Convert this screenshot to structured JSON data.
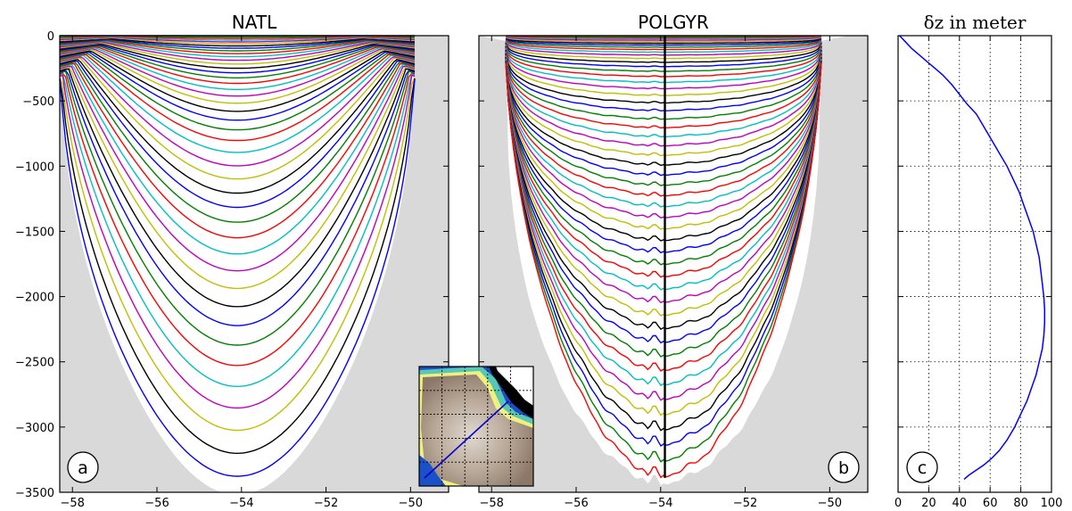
{
  "chart_data": [
    {
      "type": "line",
      "panel": "a",
      "title": "NATL",
      "xlim": [
        -58.3,
        -49.1
      ],
      "ylim": [
        -3500,
        0
      ],
      "xticks": [
        -58,
        -56,
        -54,
        -52,
        -50
      ],
      "yticks": [
        0,
        -500,
        -1000,
        -1500,
        -2000,
        -2500,
        -3000,
        -3500
      ],
      "xtick_labels": [
        "−58",
        "−56",
        "−54",
        "−52",
        "−50"
      ],
      "ytick_labels": [
        "0",
        "−500",
        "−1000",
        "−1500",
        "−2000",
        "−2500",
        "−3000",
        "−3500"
      ],
      "series_description": "Vertical model-level depths (isolines) across the section; central depth of each level",
      "level_center_depths": [
        0,
        -10,
        -21,
        -33,
        -46,
        -60,
        -76,
        -93,
        -112,
        -133,
        -156,
        -182,
        -210,
        -241,
        -275,
        -312,
        -353,
        -398,
        -447,
        -500,
        -560,
        -625,
        -697,
        -776,
        -864,
        -963,
        -1060,
        -1165,
        -1270,
        -1380,
        -1495,
        -1615,
        -1740,
        -1870,
        -2005,
        -2145,
        -2290,
        -2440,
        -2595,
        -2755,
        -2920,
        -3090,
        -3260
      ],
      "bottom_depth": -3340,
      "panel_label": "a",
      "grid": false
    },
    {
      "type": "line",
      "panel": "b",
      "title": "POLGYR",
      "xlim": [
        -58.3,
        -49.1
      ],
      "ylim": [
        -3500,
        0
      ],
      "xticks": [
        -58,
        -56,
        -54,
        -52,
        -50
      ],
      "xtick_labels": [
        "−58",
        "−56",
        "−54",
        "−52",
        "−50"
      ],
      "series_description": "Vertical model-level depths (isolines) across the section; central depth of each level",
      "level_center_depths": [
        0,
        -8,
        -16,
        -25,
        -35,
        -46,
        -58,
        -72,
        -88,
        -106,
        -126,
        -148,
        -174,
        -203,
        -236,
        -272,
        -312,
        -356,
        -404,
        -456,
        -512,
        -572,
        -636,
        -702,
        -770,
        -840,
        -912,
        -986,
        -1062,
        -1140,
        -1220,
        -1302,
        -1386,
        -1472,
        -1560,
        -1650,
        -1742,
        -1836,
        -1932,
        -2030,
        -2130,
        -2232,
        -2336,
        -2442,
        -2550,
        -2660,
        -2772,
        -2886,
        -3002,
        -3120,
        -3240,
        -3360
      ],
      "vertical_line_x": -53.9,
      "panel_label": "b",
      "grid": false
    },
    {
      "type": "line",
      "panel": "c",
      "title": "δz  in meter",
      "xlim": [
        0,
        100
      ],
      "ylim": [
        -3500,
        0
      ],
      "xticks": [
        0,
        20,
        40,
        60,
        80,
        100
      ],
      "xtick_labels": [
        "0",
        "20",
        "40",
        "60",
        "80",
        "100"
      ],
      "grid": true,
      "series": [
        {
          "color": "#0000ff",
          "x": [
            1,
            5,
            9,
            14,
            19,
            24,
            29,
            35,
            40,
            45,
            51,
            56,
            61,
            66,
            71,
            75,
            79,
            82,
            85,
            88,
            90,
            92,
            93,
            94,
            95,
            95.5,
            95.5,
            95,
            94,
            92,
            90,
            87,
            84,
            80,
            76,
            71,
            66,
            61,
            56,
            51,
            46,
            43
          ],
          "y": [
            0,
            -50,
            -100,
            -150,
            -200,
            -250,
            -300,
            -375,
            -450,
            -525,
            -600,
            -700,
            -800,
            -900,
            -1000,
            -1100,
            -1200,
            -1300,
            -1400,
            -1500,
            -1600,
            -1700,
            -1800,
            -1900,
            -2000,
            -2100,
            -2200,
            -2300,
            -2400,
            -2500,
            -2600,
            -2700,
            -2800,
            -2900,
            -3000,
            -3100,
            -3180,
            -3240,
            -3290,
            -3330,
            -3370,
            -3400
          ]
        }
      ],
      "panel_label": "c"
    }
  ],
  "inset": {
    "description_colors": [
      "#a08c78",
      "#d8d0c8",
      "#3cb4b4",
      "#1e64d2",
      "#ffff64",
      "#000000"
    ],
    "section_line_color": "#0000cc"
  },
  "colors": {
    "line_cycle": [
      "#0000ff",
      "#008000",
      "#ff0000",
      "#00bfbf",
      "#bf00bf",
      "#bfbf00",
      "#000000"
    ],
    "land": "#d9d9d9"
  }
}
